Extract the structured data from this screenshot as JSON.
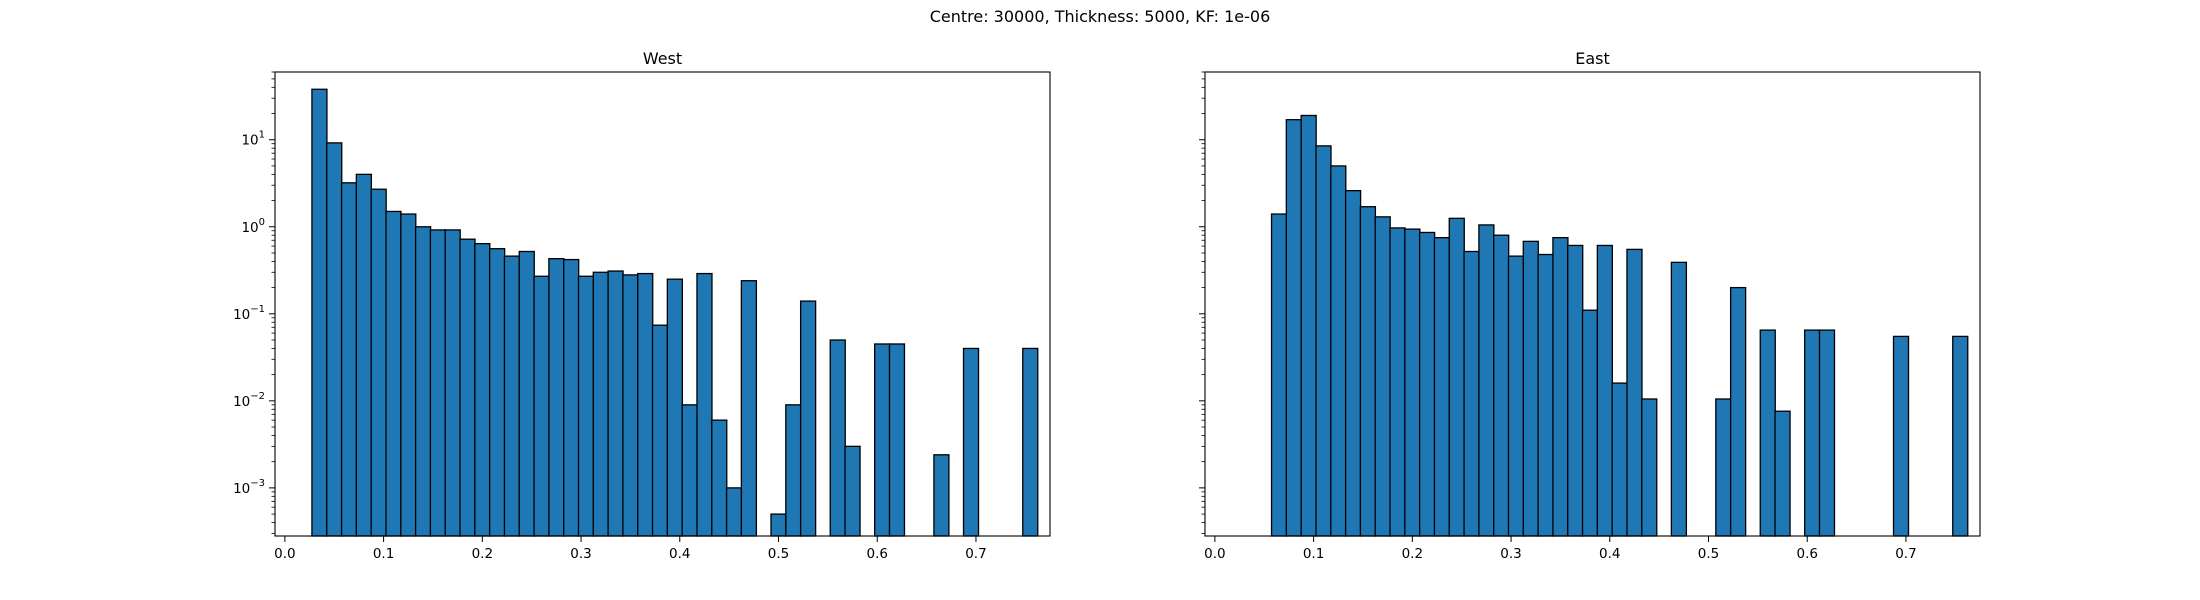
{
  "suptitle": "Centre: 30000, Thickness: 5000, KF: 1e-06",
  "bar_color": "#1f77b4",
  "edge_color": "#000000",
  "chart_data": [
    {
      "type": "bar",
      "title": "West",
      "yscale": "log",
      "xlim": [
        -0.01,
        0.775
      ],
      "ylim": [
        0.00028,
        60
      ],
      "xticks": [
        "0.0",
        "0.1",
        "0.2",
        "0.3",
        "0.4",
        "0.5",
        "0.6",
        "0.7"
      ],
      "yticks": [
        "10^1",
        "10^0",
        "10^-1",
        "10^-2",
        "10^-3"
      ],
      "bin_width": 0.0152,
      "bins": [
        {
          "x": 0.035,
          "value": 38
        },
        {
          "x": 0.05,
          "value": 9.2
        },
        {
          "x": 0.065,
          "value": 3.2
        },
        {
          "x": 0.08,
          "value": 4.0
        },
        {
          "x": 0.095,
          "value": 2.7
        },
        {
          "x": 0.11,
          "value": 1.5
        },
        {
          "x": 0.125,
          "value": 1.4
        },
        {
          "x": 0.14,
          "value": 1.0
        },
        {
          "x": 0.155,
          "value": 0.92
        },
        {
          "x": 0.17,
          "value": 0.92
        },
        {
          "x": 0.185,
          "value": 0.72
        },
        {
          "x": 0.2,
          "value": 0.64
        },
        {
          "x": 0.215,
          "value": 0.56
        },
        {
          "x": 0.23,
          "value": 0.46
        },
        {
          "x": 0.245,
          "value": 0.52
        },
        {
          "x": 0.26,
          "value": 0.27
        },
        {
          "x": 0.275,
          "value": 0.43
        },
        {
          "x": 0.29,
          "value": 0.42
        },
        {
          "x": 0.305,
          "value": 0.27
        },
        {
          "x": 0.32,
          "value": 0.3
        },
        {
          "x": 0.335,
          "value": 0.31
        },
        {
          "x": 0.35,
          "value": 0.28
        },
        {
          "x": 0.365,
          "value": 0.29
        },
        {
          "x": 0.38,
          "value": 0.074
        },
        {
          "x": 0.395,
          "value": 0.25
        },
        {
          "x": 0.41,
          "value": 0.009
        },
        {
          "x": 0.425,
          "value": 0.29
        },
        {
          "x": 0.44,
          "value": 0.006
        },
        {
          "x": 0.455,
          "value": 0.001
        },
        {
          "x": 0.47,
          "value": 0.24
        },
        {
          "x": 0.5,
          "value": 0.0005
        },
        {
          "x": 0.515,
          "value": 0.009
        },
        {
          "x": 0.53,
          "value": 0.14
        },
        {
          "x": 0.56,
          "value": 0.05
        },
        {
          "x": 0.575,
          "value": 0.003
        },
        {
          "x": 0.605,
          "value": 0.045
        },
        {
          "x": 0.62,
          "value": 0.045
        },
        {
          "x": 0.665,
          "value": 0.0024
        },
        {
          "x": 0.695,
          "value": 0.04
        },
        {
          "x": 0.755,
          "value": 0.04
        }
      ]
    },
    {
      "type": "bar",
      "title": "East",
      "yscale": "log",
      "xlim": [
        -0.01,
        0.775
      ],
      "ylim": [
        0.00028,
        60
      ],
      "xticks": [
        "0.0",
        "0.1",
        "0.2",
        "0.3",
        "0.4",
        "0.5",
        "0.6",
        "0.7"
      ],
      "yticks": [],
      "bin_width": 0.0152,
      "bins": [
        {
          "x": 0.065,
          "value": 1.4
        },
        {
          "x": 0.08,
          "value": 17
        },
        {
          "x": 0.095,
          "value": 19
        },
        {
          "x": 0.11,
          "value": 8.5
        },
        {
          "x": 0.125,
          "value": 5.0
        },
        {
          "x": 0.14,
          "value": 2.6
        },
        {
          "x": 0.155,
          "value": 1.7
        },
        {
          "x": 0.17,
          "value": 1.3
        },
        {
          "x": 0.185,
          "value": 0.97
        },
        {
          "x": 0.2,
          "value": 0.94
        },
        {
          "x": 0.215,
          "value": 0.86
        },
        {
          "x": 0.23,
          "value": 0.75
        },
        {
          "x": 0.245,
          "value": 1.25
        },
        {
          "x": 0.26,
          "value": 0.52
        },
        {
          "x": 0.275,
          "value": 1.05
        },
        {
          "x": 0.29,
          "value": 0.8
        },
        {
          "x": 0.305,
          "value": 0.46
        },
        {
          "x": 0.32,
          "value": 0.68
        },
        {
          "x": 0.335,
          "value": 0.48
        },
        {
          "x": 0.35,
          "value": 0.75
        },
        {
          "x": 0.365,
          "value": 0.61
        },
        {
          "x": 0.38,
          "value": 0.11
        },
        {
          "x": 0.395,
          "value": 0.61
        },
        {
          "x": 0.41,
          "value": 0.016
        },
        {
          "x": 0.425,
          "value": 0.55
        },
        {
          "x": 0.44,
          "value": 0.0105
        },
        {
          "x": 0.47,
          "value": 0.39
        },
        {
          "x": 0.515,
          "value": 0.0105
        },
        {
          "x": 0.53,
          "value": 0.2
        },
        {
          "x": 0.56,
          "value": 0.065
        },
        {
          "x": 0.575,
          "value": 0.0076
        },
        {
          "x": 0.605,
          "value": 0.065
        },
        {
          "x": 0.62,
          "value": 0.065
        },
        {
          "x": 0.695,
          "value": 0.055
        },
        {
          "x": 0.755,
          "value": 0.055
        }
      ]
    }
  ]
}
